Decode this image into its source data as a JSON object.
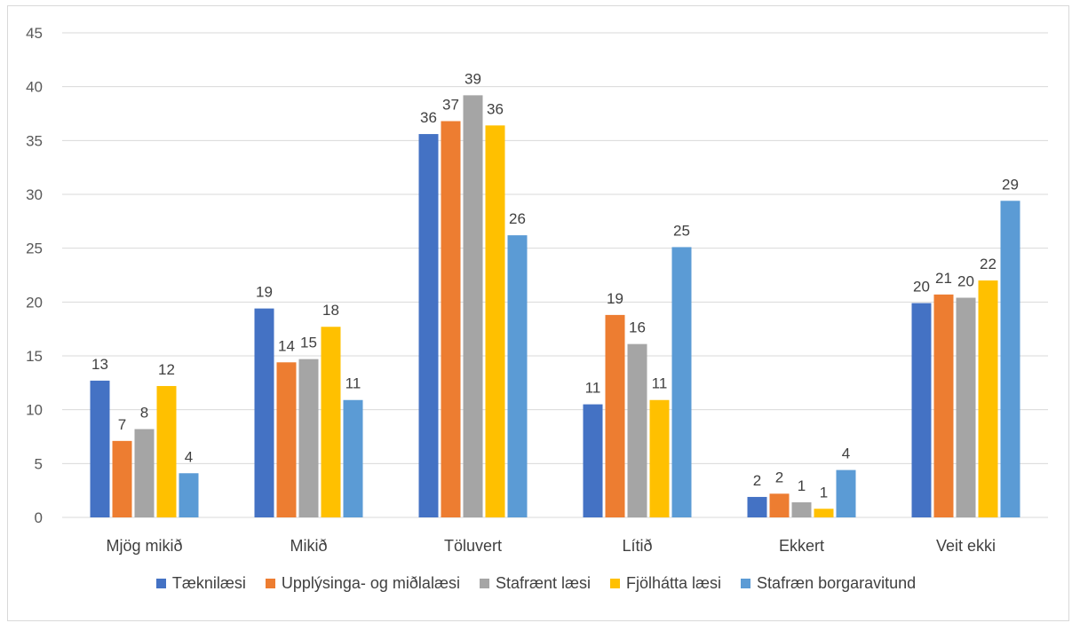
{
  "chart_data": {
    "type": "bar",
    "title": "",
    "xlabel": "",
    "ylabel": "",
    "ylim": [
      0,
      45
    ],
    "yticks": [
      0,
      5,
      10,
      15,
      20,
      25,
      30,
      35,
      40,
      45
    ],
    "grid": true,
    "legend_position": "bottom",
    "categories": [
      "Mjög mikið",
      "Mikið",
      "Töluvert",
      "Lítið",
      "Ekkert",
      "Veit ekki"
    ],
    "series": [
      {
        "name": "Tæknilæsi",
        "color": "#4472C4",
        "values": [
          12.7,
          19.4,
          35.6,
          10.5,
          1.9,
          19.9
        ],
        "labels": [
          "13",
          "19",
          "36",
          "11",
          "2",
          "20"
        ]
      },
      {
        "name": "Upplýsinga- og miðlalæsi",
        "color": "#ED7D31",
        "values": [
          7.1,
          14.4,
          36.8,
          18.8,
          2.2,
          20.7
        ],
        "labels": [
          "7",
          "14",
          "37",
          "19",
          "2",
          "21"
        ]
      },
      {
        "name": "Stafrænt læsi",
        "color": "#A5A5A5",
        "values": [
          8.2,
          14.7,
          39.2,
          16.1,
          1.4,
          20.4
        ],
        "labels": [
          "8",
          "15",
          "39",
          "16",
          "1",
          "20"
        ]
      },
      {
        "name": "Fjölhátta læsi",
        "color": "#FFC000",
        "values": [
          12.2,
          17.7,
          36.4,
          10.9,
          0.8,
          22.0
        ],
        "labels": [
          "12",
          "18",
          "36",
          "11",
          "1",
          "22"
        ]
      },
      {
        "name": "Stafræn borgaravitund",
        "color": "#5B9BD5",
        "values": [
          4.1,
          10.9,
          26.2,
          25.1,
          4.4,
          29.4
        ],
        "labels": [
          "4",
          "11",
          "26",
          "25",
          "4",
          "29"
        ]
      }
    ]
  }
}
